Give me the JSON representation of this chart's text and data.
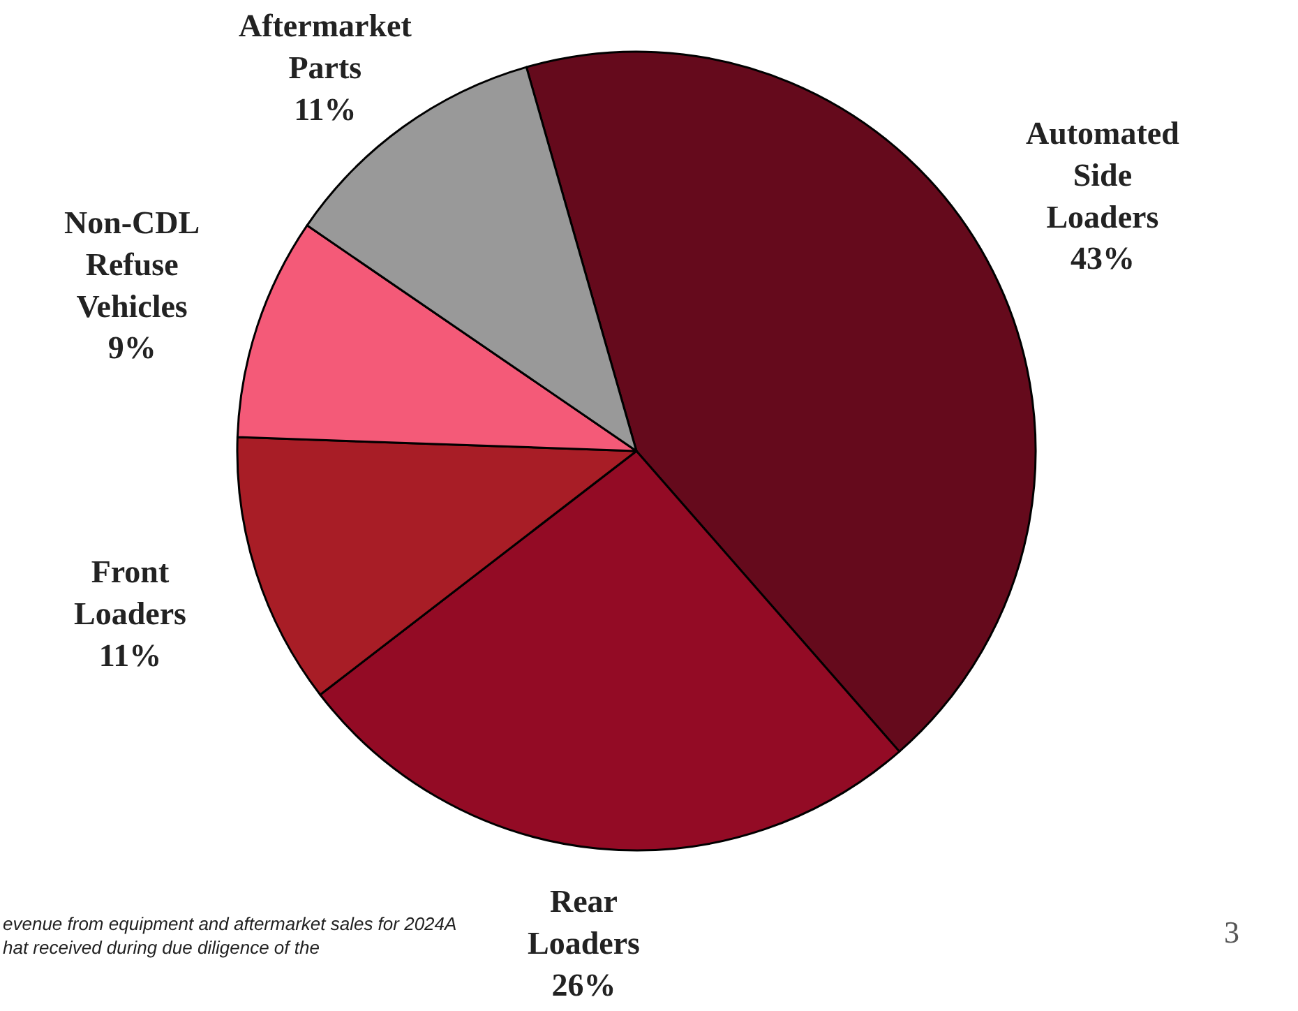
{
  "chart_data": {
    "type": "pie",
    "categories": [
      "Automated\nSide\nLoaders",
      "Rear\nLoaders",
      "Front\nLoaders",
      "Non-CDL\nRefuse\nVehicles",
      "Aftermarket\nParts"
    ],
    "values": [
      43,
      26,
      11,
      9,
      11
    ],
    "value_labels": [
      "43%",
      "26%",
      "11%",
      "9%",
      "11%"
    ],
    "colors": [
      "#650a1c",
      "#930b25",
      "#a81d26",
      "#f45a78",
      "#999999"
    ],
    "annotations": [
      "evenue from equipment and aftermarket sales for 2024A\nhat received during due diligence of the",
      "3"
    ]
  }
}
